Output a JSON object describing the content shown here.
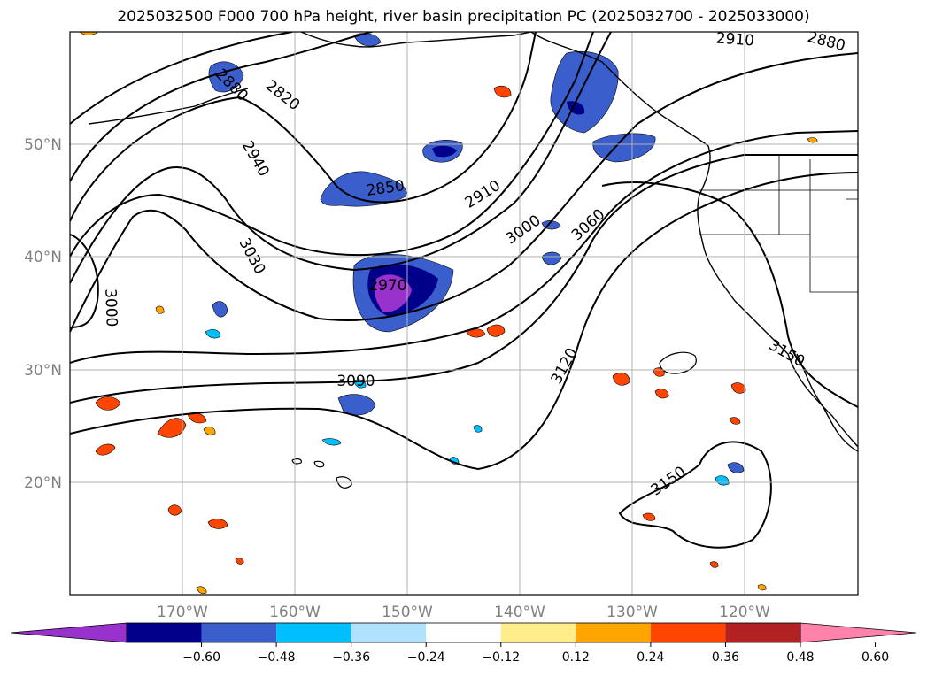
{
  "title": "2025032500 F000 700 hPa height, river basin precipitation PC (2025032700 - 2025033000)",
  "map": {
    "lon_range": [
      -180,
      -110
    ],
    "lat_range": [
      10,
      60
    ],
    "lat_labels": [
      "20°N",
      "30°N",
      "40°N",
      "50°N"
    ],
    "lon_labels": [
      "170°W",
      "160°W",
      "150°W",
      "140°W",
      "130°W",
      "120°W"
    ],
    "colors": {
      "land_outline": "#000000",
      "grid": "#b0b0b0",
      "contour": "#000000"
    }
  },
  "contour_labels": [
    "2880",
    "2820",
    "2940",
    "2850",
    "3030",
    "3000",
    "2970",
    "3090",
    "2910",
    "3000",
    "3060",
    "3120",
    "2910",
    "2880",
    "3150",
    "3150"
  ],
  "colorbar": {
    "ticks": [
      "−0.60",
      "−0.48",
      "−0.36",
      "−0.24",
      "−0.12",
      "0.12",
      "0.24",
      "0.36",
      "0.48",
      "0.60"
    ],
    "colors": [
      "#9932cc",
      "#00008b",
      "#3a5fcd",
      "#00bfff",
      "#b0e2ff",
      "#ffffff",
      "#ffec8b",
      "#ffa500",
      "#ff4500",
      "#b22222",
      "#ff82ab"
    ]
  }
}
